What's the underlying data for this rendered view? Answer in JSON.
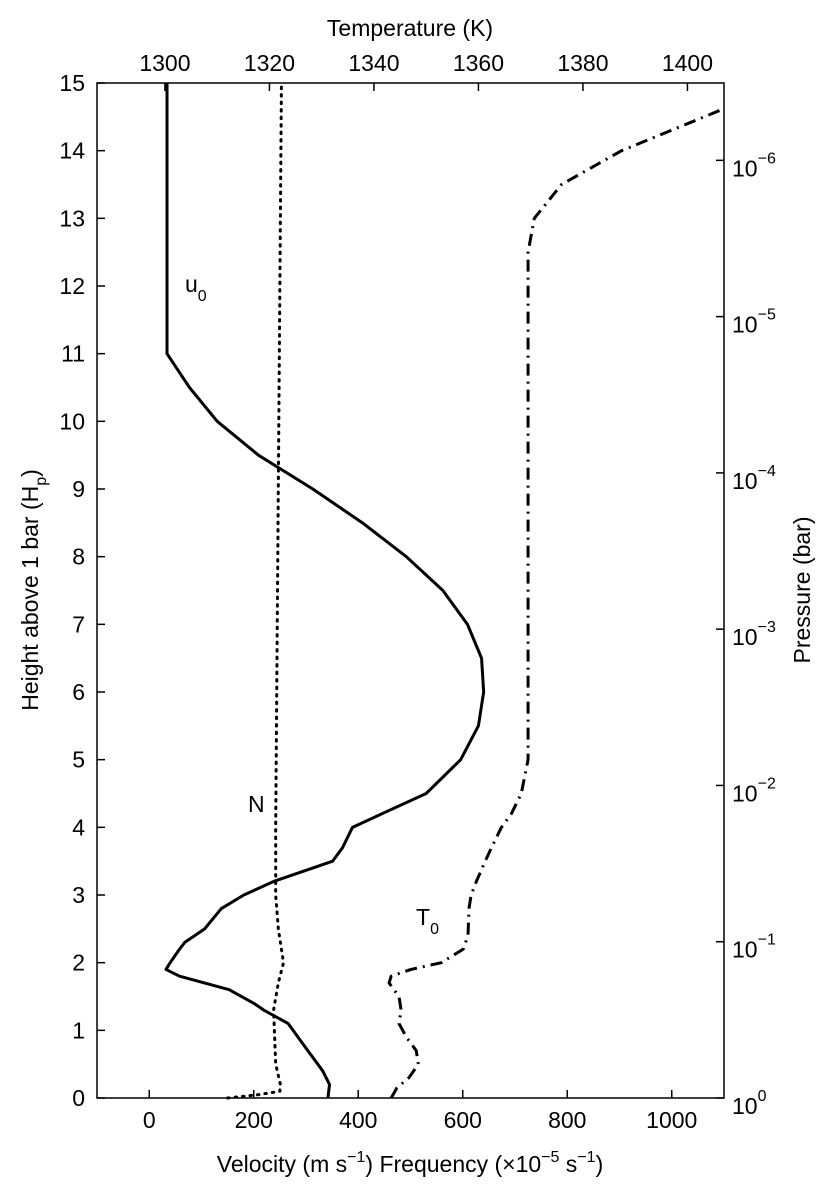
{
  "chart_data": {
    "type": "line",
    "title": "Temperature (K)",
    "xlabel": [
      "Velocity (m s",
      "−1",
      ") Frequency (×10",
      "−5",
      " s",
      "−1",
      ")"
    ],
    "ylabel": [
      "Height above 1 bar (H",
      "p",
      ")"
    ],
    "y2label": "Pressure (bar)",
    "xlim": [
      -100,
      1100
    ],
    "xticks": [
      0,
      200,
      400,
      600,
      800,
      1000
    ],
    "x2lim": [
      1287,
      1407
    ],
    "x2ticks": [
      1300,
      1320,
      1340,
      1360,
      1380,
      1400
    ],
    "ylim": [
      0,
      15
    ],
    "yticks": [
      0,
      1,
      2,
      3,
      4,
      5,
      6,
      7,
      8,
      9,
      10,
      11,
      12,
      13,
      14,
      15
    ],
    "y2lim": [
      1,
      3.2e-07
    ],
    "y2log": true,
    "y2ticks": [
      {
        "value": 1,
        "label": "10",
        "exponent": "0"
      },
      {
        "value": 0.1,
        "label": "10",
        "exponent": "−1"
      },
      {
        "value": 0.01,
        "label": "10",
        "exponent": "−2"
      },
      {
        "value": 0.001,
        "label": "10",
        "exponent": "−3"
      },
      {
        "value": 0.0001,
        "label": "10",
        "exponent": "−4"
      },
      {
        "value": 1e-05,
        "label": "10",
        "exponent": "−5"
      },
      {
        "value": 1e-06,
        "label": "10",
        "exponent": "−6"
      }
    ],
    "annotations": [
      {
        "text": "u",
        "sub": "0"
      },
      {
        "text": "N"
      },
      {
        "text": "T",
        "sub": "0"
      }
    ],
    "series": [
      {
        "axis": "x",
        "color": "#000000",
        "linestyle": "solid",
        "height": [
          0,
          0.2,
          0.4,
          0.6,
          0.8,
          1.1,
          1.3,
          1.4,
          1.6,
          1.8,
          1.9,
          2,
          2.2,
          2.3,
          2.5,
          2.8,
          3,
          3.2,
          3.5,
          3.7,
          4,
          4.2,
          4.5,
          5,
          5.5,
          6,
          6.5,
          7,
          7.5,
          8,
          8.5,
          9,
          9.5,
          10,
          10.5,
          11,
          15
        ],
        "values": [
          342,
          345,
          332,
          313,
          294,
          266,
          219,
          200,
          153,
          58,
          32,
          40,
          58,
          68,
          106,
          138,
          181,
          238,
          351,
          370,
          389,
          445,
          530,
          596,
          630,
          640,
          636,
          609,
          562,
          492,
          408,
          313,
          209,
          130,
          77,
          34,
          34
        ]
      },
      {
        "axis": "x",
        "color": "#000000",
        "linestyle": "dotted",
        "height": [
          0,
          0.05,
          0.1,
          0.2,
          0.5,
          1.3,
          1.7,
          2,
          2.5,
          3,
          4,
          15
        ],
        "values": [
          150,
          210,
          250,
          251,
          242,
          238,
          247,
          257,
          247,
          242,
          242,
          253
        ]
      },
      {
        "axis": "x2",
        "color": "#000000",
        "linestyle": "dashdot",
        "height": [
          0,
          0.15,
          0.3,
          0.5,
          0.7,
          0.9,
          1.1,
          1.3,
          1.5,
          1.7,
          1.8,
          1.9,
          2,
          2.2,
          2.4,
          2.8,
          3,
          3.2,
          3.5,
          3.7,
          4,
          4.2,
          4.5,
          5,
          12.5,
          13,
          13.5,
          14,
          14.3,
          14.62
        ],
        "values": [
          1343.3,
          1344.4,
          1346.7,
          1348.5,
          1348.1,
          1346.2,
          1344.8,
          1345.2,
          1344.8,
          1342.9,
          1343.3,
          1347.1,
          1352.9,
          1357.1,
          1358,
          1358.2,
          1358.6,
          1359.6,
          1361.3,
          1362.5,
          1364.4,
          1366.3,
          1368.2,
          1369.5,
          1369.5,
          1370.7,
          1375.9,
          1387.4,
          1396.9,
          1407
        ]
      }
    ]
  }
}
